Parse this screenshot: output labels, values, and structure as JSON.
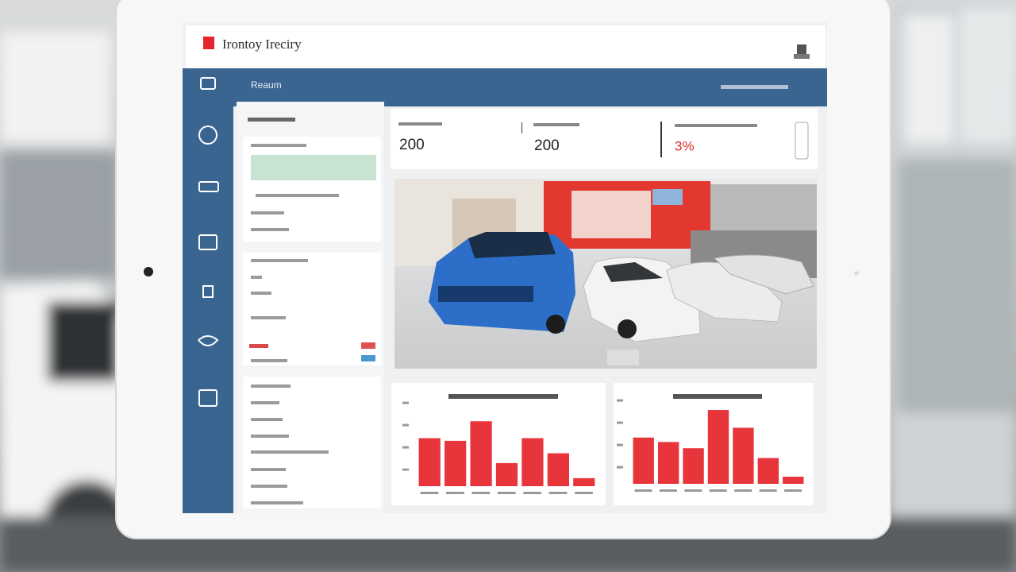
{
  "header": {
    "title": "Irontoy Ireciry"
  },
  "nav": {
    "label": "Reaum"
  },
  "kpis": [
    {
      "value": "200"
    },
    {
      "value": "200"
    },
    {
      "value": "3%"
    }
  ],
  "chart_data": [
    {
      "type": "bar",
      "values": [
        54,
        51,
        73,
        26,
        54,
        37,
        9
      ],
      "color": "#e8353b",
      "ylim": [
        0,
        100
      ]
    },
    {
      "type": "bar",
      "values": [
        52,
        47,
        40,
        83,
        63,
        29,
        8
      ],
      "color": "#e8353b",
      "ylim": [
        0,
        100
      ]
    }
  ]
}
